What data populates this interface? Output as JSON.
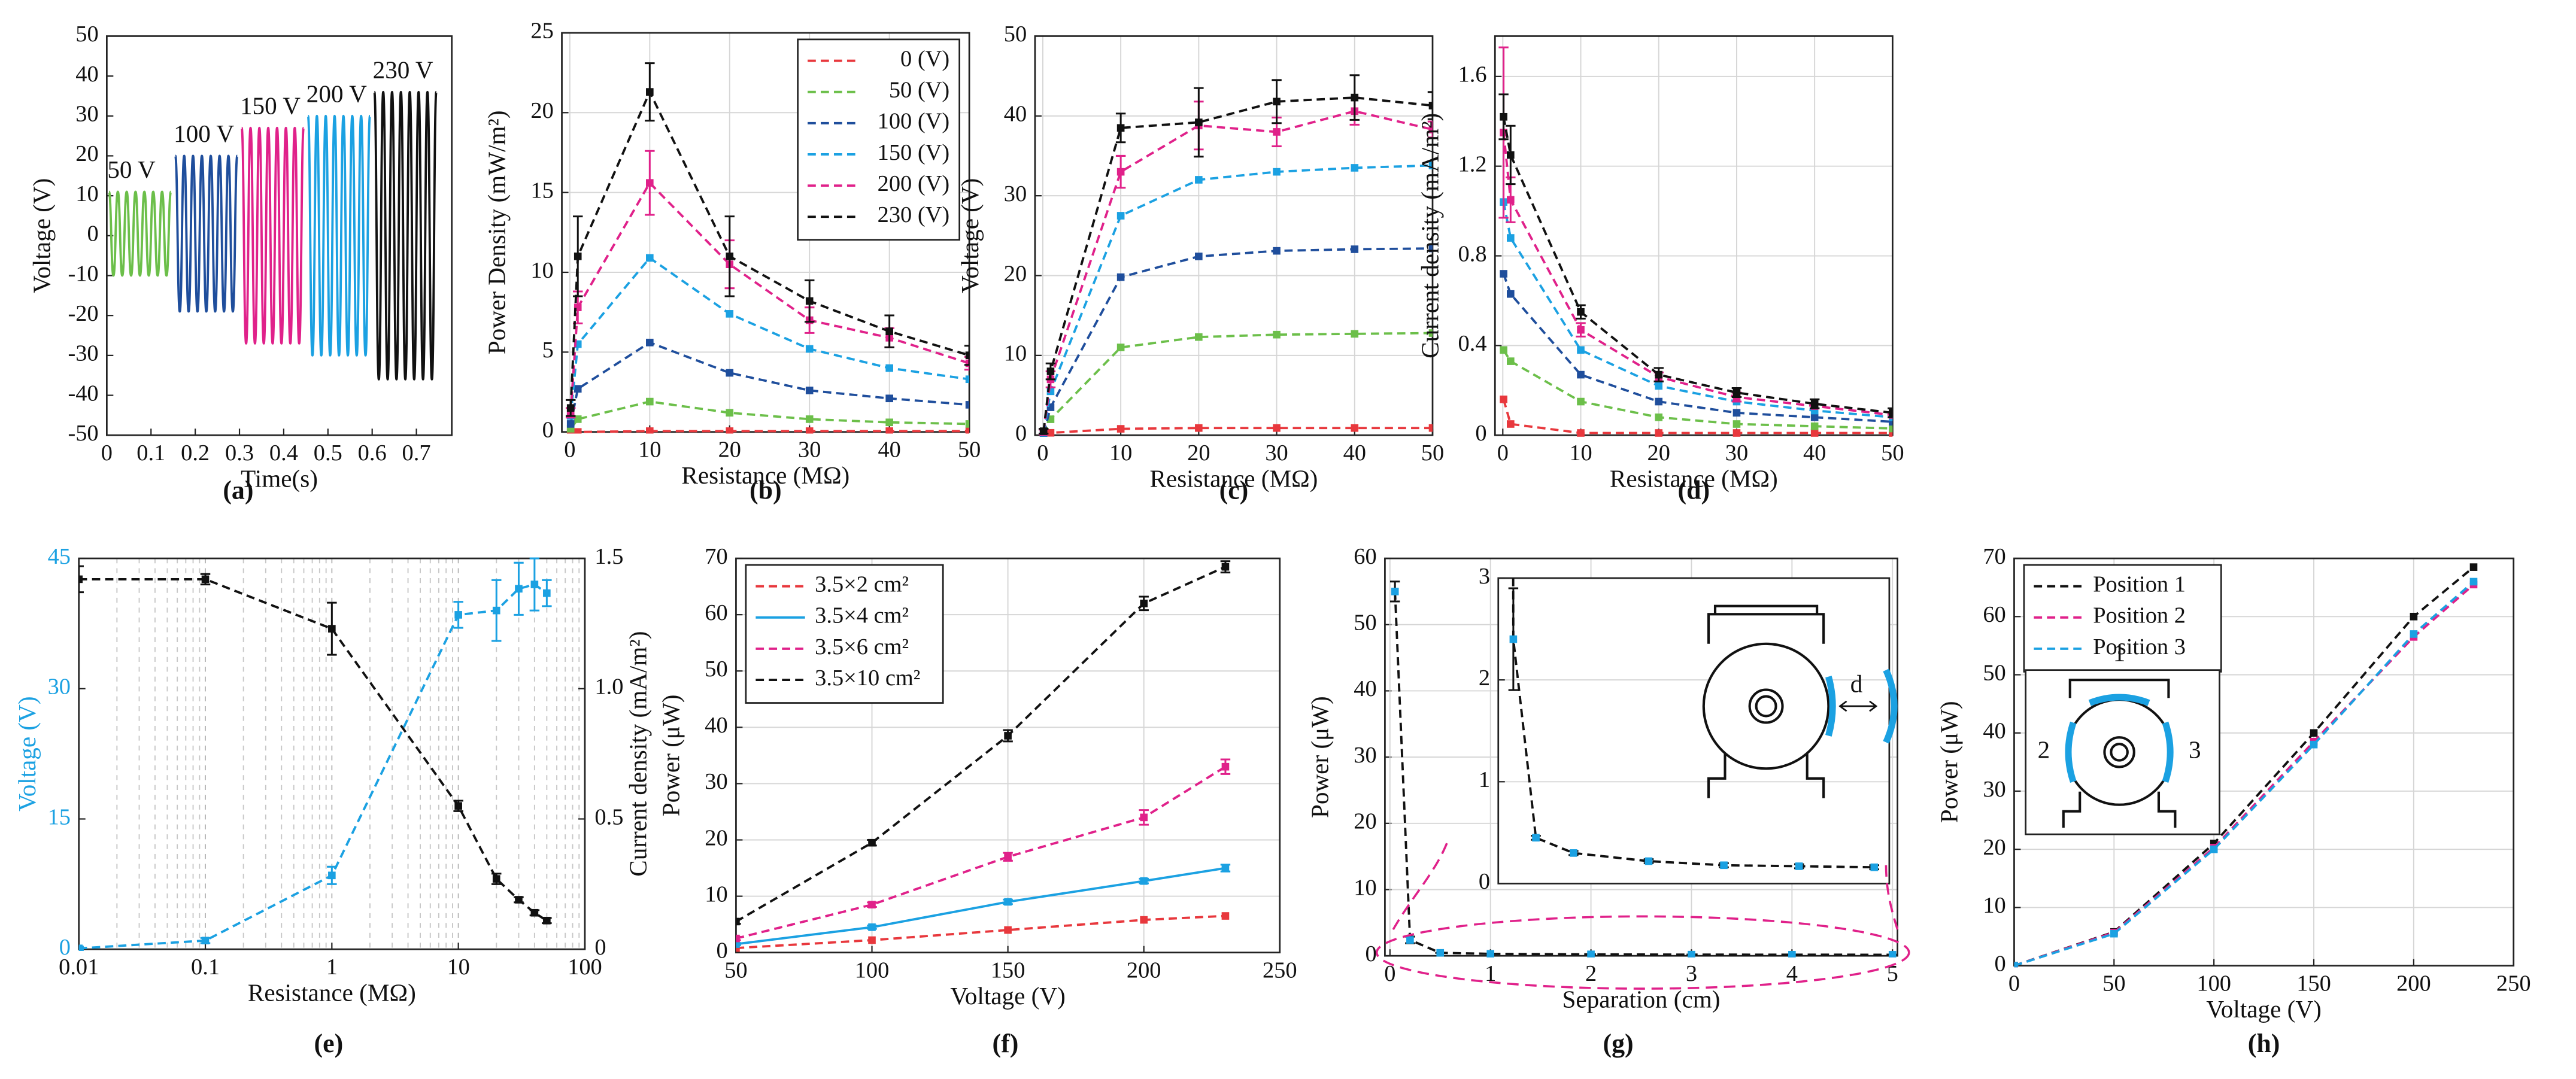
{
  "chart_data": [
    {
      "type": "line",
      "panel_label": "(a)",
      "xlabel": "Time(s)",
      "ylabel": "Voltage (V)",
      "xlim": [
        0,
        0.78
      ],
      "xticks": [
        0,
        0.1,
        0.2,
        0.3,
        0.4,
        0.5,
        0.6,
        0.7
      ],
      "ylim": [
        -50,
        50
      ],
      "yticks": [
        -50,
        -40,
        -30,
        -20,
        -10,
        0,
        10,
        20,
        30,
        40,
        50
      ],
      "grid": false,
      "markers": false,
      "series": [
        {
          "name": "50 V",
          "color": "#6cbf4a",
          "dashed": false,
          "x": [
            0.005,
            0.015,
            0.025,
            0.035,
            0.045,
            0.055,
            0.065,
            0.075,
            0.085,
            0.095,
            0.105,
            0.115,
            0.125,
            0.135,
            0.145
          ],
          "values": [
            11,
            -10,
            11,
            -10,
            11,
            -10,
            11,
            -10,
            11,
            -10,
            11,
            -10,
            11,
            -10,
            11
          ]
        },
        {
          "name": "100 V",
          "color": "#1f4e9c",
          "dashed": false,
          "x": [
            0.155,
            0.165,
            0.175,
            0.185,
            0.195,
            0.205,
            0.215,
            0.225,
            0.235,
            0.245,
            0.255,
            0.265,
            0.275,
            0.285,
            0.295
          ],
          "values": [
            20,
            -19,
            20,
            -19,
            20,
            -19,
            20,
            -19,
            20,
            -19,
            20,
            -19,
            20,
            -19,
            20
          ]
        },
        {
          "name": "150 V",
          "color": "#e0218a",
          "dashed": false,
          "x": [
            0.305,
            0.315,
            0.325,
            0.335,
            0.345,
            0.355,
            0.365,
            0.375,
            0.385,
            0.395,
            0.405,
            0.415,
            0.425,
            0.435,
            0.445
          ],
          "values": [
            27,
            -27,
            27,
            -27,
            27,
            -27,
            27,
            -27,
            27,
            -27,
            27,
            -27,
            27,
            -27,
            27
          ]
        },
        {
          "name": "200 V",
          "color": "#1ba1e2",
          "dashed": false,
          "x": [
            0.455,
            0.465,
            0.475,
            0.485,
            0.495,
            0.505,
            0.515,
            0.525,
            0.535,
            0.545,
            0.555,
            0.565,
            0.575,
            0.585,
            0.595
          ],
          "values": [
            30,
            -30,
            30,
            -30,
            30,
            -30,
            30,
            -30,
            30,
            -30,
            30,
            -30,
            30,
            -30,
            30
          ]
        },
        {
          "name": "230 V",
          "color": "#111111",
          "dashed": false,
          "x": [
            0.605,
            0.615,
            0.625,
            0.635,
            0.645,
            0.655,
            0.665,
            0.675,
            0.685,
            0.695,
            0.705,
            0.715,
            0.725,
            0.735,
            0.745
          ],
          "values": [
            36,
            -36,
            36,
            -36,
            36,
            -36,
            36,
            -36,
            36,
            -36,
            36,
            -36,
            36,
            -36,
            36
          ]
        }
      ]
    },
    {
      "type": "line",
      "panel_label": "(b)",
      "xlabel": "Resistance (MΩ)",
      "ylabel": "Power Density (mW/m²)",
      "xlim": [
        -1,
        50
      ],
      "xticks": [
        0,
        10,
        20,
        30,
        40,
        50
      ],
      "ylim": [
        0,
        25
      ],
      "yticks": [
        0,
        5,
        10,
        15,
        20,
        25
      ],
      "grid": true,
      "legend": "upper right",
      "x": [
        0.1,
        1,
        10,
        20,
        30,
        40,
        50
      ],
      "series": [
        {
          "name": "0 (V)",
          "color": "#e8383d",
          "dashed": true,
          "values": [
            0,
            0,
            0.05,
            0.05,
            0.05,
            0.05,
            0.05
          ]
        },
        {
          "name": "50 (V)",
          "color": "#6cbf4a",
          "dashed": true,
          "values": [
            0.2,
            0.8,
            1.9,
            1.2,
            0.8,
            0.6,
            0.5
          ]
        },
        {
          "name": "100 (V)",
          "color": "#1f4e9c",
          "dashed": true,
          "values": [
            0.5,
            2.7,
            5.6,
            3.7,
            2.6,
            2.1,
            1.7
          ]
        },
        {
          "name": "150 (V)",
          "color": "#1ba1e2",
          "dashed": true,
          "values": [
            1,
            5.5,
            10.9,
            7.4,
            5.2,
            4,
            3.3
          ]
        },
        {
          "name": "200 (V)",
          "color": "#e0218a",
          "dashed": true,
          "values": [
            1.2,
            7.8,
            15.6,
            10.5,
            7,
            5.9,
            4.3
          ],
          "errors": [
            0.3,
            1,
            2,
            1.5,
            0.8,
            0.6,
            0.4
          ]
        },
        {
          "name": "230 (V)",
          "color": "#111111",
          "dashed": true,
          "values": [
            1.5,
            11,
            21.3,
            11,
            8.2,
            6.3,
            4.8
          ],
          "errors": [
            0.5,
            2.5,
            1.8,
            2.5,
            1.3,
            1,
            0.6
          ]
        }
      ]
    },
    {
      "type": "line",
      "panel_label": "(c)",
      "xlabel": "Resistance (MΩ)",
      "ylabel": "Voltage (V)",
      "xlim": [
        -1,
        50
      ],
      "xticks": [
        0,
        10,
        20,
        30,
        40,
        50
      ],
      "ylim": [
        0,
        50
      ],
      "yticks": [
        0,
        10,
        20,
        30,
        40,
        50
      ],
      "grid": true,
      "x": [
        0.1,
        1,
        10,
        20,
        30,
        40,
        50
      ],
      "series": [
        {
          "color": "#e8383d",
          "dashed": true,
          "values": [
            0,
            0.3,
            0.8,
            0.9,
            0.9,
            0.9,
            0.9
          ]
        },
        {
          "color": "#6cbf4a",
          "dashed": true,
          "values": [
            0.1,
            2,
            11,
            12.3,
            12.6,
            12.7,
            12.8
          ]
        },
        {
          "color": "#1f4e9c",
          "dashed": true,
          "values": [
            0.2,
            3.5,
            19.8,
            22.4,
            23.1,
            23.3,
            23.4
          ]
        },
        {
          "color": "#1ba1e2",
          "dashed": true,
          "values": [
            0.3,
            5.5,
            27.5,
            32,
            33,
            33.5,
            33.8
          ]
        },
        {
          "color": "#e0218a",
          "dashed": true,
          "values": [
            0.4,
            7,
            33,
            38.8,
            38,
            40.6,
            38.3
          ],
          "errors": [
            0.3,
            1,
            2,
            3,
            1.8,
            1.7,
            1
          ]
        },
        {
          "color": "#111111",
          "dashed": true,
          "values": [
            0.5,
            8,
            38.5,
            39.2,
            41.8,
            42.3,
            41.3
          ],
          "errors": [
            0.3,
            1,
            1.8,
            4.3,
            2.7,
            2.8,
            1.7
          ]
        }
      ]
    },
    {
      "type": "line",
      "panel_label": "(d)",
      "xlabel": "Resistance (MΩ)",
      "ylabel": "Current density (mA/m²)",
      "xlim": [
        -1,
        50
      ],
      "xticks": [
        0,
        10,
        20,
        30,
        40,
        50
      ],
      "ylim": [
        0,
        1.78
      ],
      "yticks": [
        0,
        0.4,
        0.8,
        1.2,
        1.6
      ],
      "grid": true,
      "x": [
        0.1,
        1,
        10,
        20,
        30,
        40,
        50
      ],
      "series": [
        {
          "color": "#e8383d",
          "dashed": true,
          "values": [
            0.16,
            0.05,
            0.01,
            0.01,
            0.01,
            0.01,
            0.01
          ]
        },
        {
          "color": "#6cbf4a",
          "dashed": true,
          "values": [
            0.38,
            0.33,
            0.15,
            0.08,
            0.05,
            0.04,
            0.03
          ]
        },
        {
          "color": "#1f4e9c",
          "dashed": true,
          "values": [
            0.72,
            0.63,
            0.27,
            0.15,
            0.1,
            0.08,
            0.06
          ]
        },
        {
          "color": "#1ba1e2",
          "dashed": true,
          "values": [
            1.04,
            0.88,
            0.38,
            0.22,
            0.15,
            0.11,
            0.08
          ]
        },
        {
          "color": "#e0218a",
          "dashed": true,
          "values": [
            1.35,
            1.05,
            0.47,
            0.26,
            0.17,
            0.13,
            0.09
          ],
          "errors": [
            0.38,
            0.1,
            0.03,
            0.02,
            0.02,
            0.01,
            0.01
          ]
        },
        {
          "color": "#111111",
          "dashed": true,
          "values": [
            1.42,
            1.25,
            0.55,
            0.27,
            0.19,
            0.14,
            0.1
          ],
          "errors": [
            0.1,
            0.13,
            0.03,
            0.03,
            0.02,
            0.02,
            0.02
          ]
        }
      ]
    },
    {
      "type": "line",
      "panel_label": "(e)",
      "xlabel": "Resistance (MΩ)",
      "ylabel": "Voltage (V)",
      "y2label": "Current density (mA/m²)",
      "xlog": true,
      "xlim": [
        0.01,
        100
      ],
      "xticks": [
        0.01,
        0.1,
        1,
        10,
        100
      ],
      "ylim": [
        0,
        45
      ],
      "yticks": [
        0,
        15,
        30,
        45
      ],
      "ycolor": "#1ba1e2",
      "y2lim": [
        0,
        1.5
      ],
      "y2ticks": [
        0,
        0.5,
        {
          "value": 1,
          "label": "1.0"
        },
        1.5
      ],
      "grid": "x",
      "x": [
        0.01,
        0.1,
        1,
        10,
        20,
        30,
        40,
        50
      ],
      "series": [
        {
          "color": "#1ba1e2",
          "dashed": true,
          "values": [
            0.1,
            1,
            8.5,
            38.5,
            39,
            41.5,
            42,
            41
          ],
          "errors": [
            0.2,
            0.3,
            1,
            1.5,
            3.5,
            3,
            3,
            1.5
          ]
        },
        {
          "color": "#111111",
          "dashed": true,
          "axis": "y2",
          "values": [
            1.42,
            1.42,
            1.23,
            0.55,
            0.27,
            0.19,
            0.14,
            0.11
          ],
          "errors": [
            0.05,
            0.02,
            0.1,
            0.02,
            0.02,
            0.01,
            0.01,
            0.01
          ]
        }
      ]
    },
    {
      "type": "line",
      "panel_label": "(f)",
      "xlabel": "Voltage (V)",
      "ylabel": "Power (μW)",
      "xlim": [
        50,
        250
      ],
      "xticks": [
        50,
        100,
        150,
        200,
        250
      ],
      "ylim": [
        0,
        70
      ],
      "yticks": [
        0,
        10,
        20,
        30,
        40,
        50,
        60,
        70
      ],
      "grid": true,
      "legend": "upper left",
      "x": [
        50,
        100,
        150,
        200,
        230
      ],
      "series": [
        {
          "name": "3.5×2 cm²",
          "color": "#e8383d",
          "dashed": true,
          "values": [
            0.8,
            2.2,
            4,
            5.8,
            6.5
          ]
        },
        {
          "name": "3.5×4 cm²",
          "color": "#1ba1e2",
          "dashed": false,
          "values": [
            1.5,
            4.5,
            9,
            12.7,
            15
          ],
          "errors": [
            0.2,
            0.3,
            0.4,
            0.4,
            0.6
          ]
        },
        {
          "name": "3.5×6 cm²",
          "color": "#e0218a",
          "dashed": true,
          "values": [
            2.5,
            8.5,
            17,
            24,
            33
          ],
          "errors": [
            0.3,
            0.4,
            0.7,
            1.3,
            1.3
          ]
        },
        {
          "name": "3.5×10 cm²",
          "color": "#111111",
          "dashed": true,
          "values": [
            5.5,
            19.5,
            38.5,
            62,
            68.5
          ],
          "errors": [
            0.4,
            0.5,
            1,
            1.2,
            1
          ]
        }
      ]
    },
    {
      "type": "line",
      "panel_label": "(g)",
      "xlabel": "Separation (cm)",
      "ylabel": "Power (μW)",
      "xlim": [
        -0.05,
        5.05
      ],
      "xticks": [
        0,
        1,
        2,
        3,
        4,
        5
      ],
      "ylim": [
        0,
        60
      ],
      "yticks": [
        0,
        10,
        20,
        30,
        40,
        50,
        60
      ],
      "grid": true,
      "x": [
        0.05,
        0.2,
        0.5,
        1,
        2,
        3,
        4,
        5
      ],
      "inset": {
        "xlim": [
          0,
          5.2
        ],
        "ylim": [
          0,
          3
        ],
        "yticks": [
          0,
          1,
          2,
          3
        ]
      },
      "annotations": [
        "d"
      ],
      "series": [
        {
          "color": "#111111",
          "marker_color": "#1ba1e2",
          "dashed": true,
          "values": [
            55,
            2.4,
            0.45,
            0.3,
            0.22,
            0.18,
            0.17,
            0.16
          ],
          "errors": [
            1.5,
            0.5,
            0.02,
            0.02,
            0.02,
            0.02,
            0.02,
            0.02
          ]
        }
      ]
    },
    {
      "type": "line",
      "panel_label": "(h)",
      "xlabel": "Voltage (V)",
      "ylabel": "Power (μW)",
      "xlim": [
        0,
        250
      ],
      "xticks": [
        0,
        50,
        100,
        150,
        200,
        250
      ],
      "ylim": [
        0,
        70
      ],
      "yticks": [
        0,
        10,
        20,
        30,
        40,
        50,
        60,
        70
      ],
      "grid": true,
      "legend": "upper left",
      "x": [
        0,
        50,
        100,
        150,
        200,
        230
      ],
      "annotations": [
        "1",
        "2",
        "3"
      ],
      "series": [
        {
          "name": "Position 1",
          "color": "#111111",
          "dashed": true,
          "values": [
            0,
            5.8,
            21,
            40,
            60,
            68.5
          ]
        },
        {
          "name": "Position 2",
          "color": "#e0218a",
          "dashed": true,
          "values": [
            0,
            5.7,
            20.3,
            38.5,
            56.5,
            65.5
          ]
        },
        {
          "name": "Position 3",
          "color": "#1ba1e2",
          "dashed": true,
          "values": [
            0,
            5.5,
            20,
            38,
            57,
            66
          ]
        }
      ]
    }
  ]
}
